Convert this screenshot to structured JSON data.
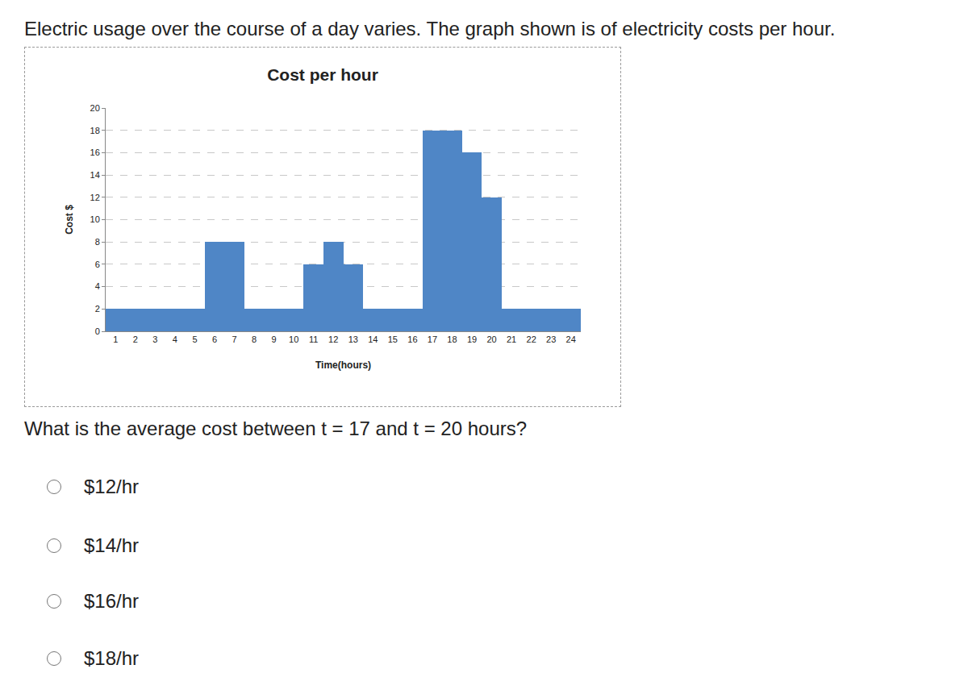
{
  "header": "Electric usage over the course of a day varies. The graph shown is of electricity costs per hour.",
  "chart_data": {
    "type": "bar",
    "title": "Cost per hour",
    "x_label": "Time(hours)",
    "y_label": "Cost $",
    "x": [
      1,
      2,
      3,
      4,
      5,
      6,
      7,
      8,
      9,
      10,
      11,
      12,
      13,
      14,
      15,
      16,
      17,
      18,
      19,
      20,
      21,
      22,
      23,
      24
    ],
    "values": [
      2,
      2,
      2,
      2,
      2,
      8,
      8,
      2,
      2,
      2,
      6,
      8,
      6,
      2,
      2,
      2,
      18,
      18,
      16,
      12,
      2,
      2,
      2,
      2
    ],
    "color": "#4f86c6",
    "xlim": [
      0.5,
      24.5
    ],
    "xticks": [
      1,
      2,
      3,
      4,
      5,
      6,
      7,
      8,
      9,
      10,
      11,
      12,
      13,
      14,
      15,
      16,
      17,
      18,
      19,
      20,
      21,
      22,
      23,
      24
    ],
    "ylim": [
      0,
      20
    ],
    "yticks": [
      0,
      2,
      4,
      6,
      8,
      10,
      12,
      14,
      16,
      18,
      20
    ],
    "grid": true
  },
  "question": "What is the average cost between t = 17 and t = 20 hours?",
  "options": [
    "$12/hr",
    "$14/hr",
    "$16/hr",
    "$18/hr"
  ]
}
